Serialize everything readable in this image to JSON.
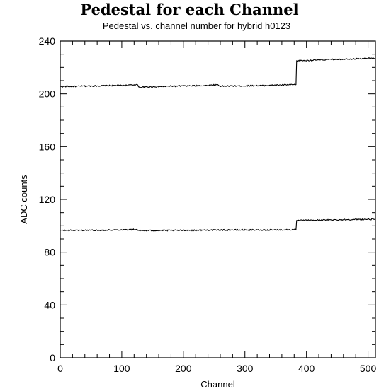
{
  "chart_data": {
    "type": "line",
    "title": "Pedestal for each Channel",
    "subtitle": "Pedestal vs. channel number for hybrid h0123",
    "xlabel": "Channel",
    "ylabel": "ADC counts",
    "xlim": [
      0,
      512
    ],
    "ylim": [
      0,
      240
    ],
    "xticks": [
      0,
      100,
      200,
      300,
      400,
      500
    ],
    "yticks": [
      0,
      40,
      80,
      120,
      160,
      200,
      240
    ],
    "grid": false,
    "series": [
      {
        "points": [
          [
            0,
            205.5
          ],
          [
            60,
            206.0
          ],
          [
            110,
            206.5
          ],
          [
            125,
            207.0
          ],
          [
            128,
            205.0
          ],
          [
            180,
            205.8
          ],
          [
            240,
            206.3
          ],
          [
            256,
            207.0
          ],
          [
            259,
            205.8
          ],
          [
            320,
            206.2
          ],
          [
            383,
            207.0
          ],
          [
            384,
            225.0
          ],
          [
            440,
            226.0
          ],
          [
            480,
            226.5
          ],
          [
            512,
            227.0
          ]
        ]
      },
      {
        "points": [
          [
            0,
            96.5
          ],
          [
            60,
            96.6
          ],
          [
            125,
            97.2
          ],
          [
            128,
            96.3
          ],
          [
            200,
            96.5
          ],
          [
            256,
            96.8
          ],
          [
            320,
            96.8
          ],
          [
            383,
            97.0
          ],
          [
            384,
            104.0
          ],
          [
            440,
            104.5
          ],
          [
            512,
            105.0
          ]
        ]
      }
    ]
  }
}
